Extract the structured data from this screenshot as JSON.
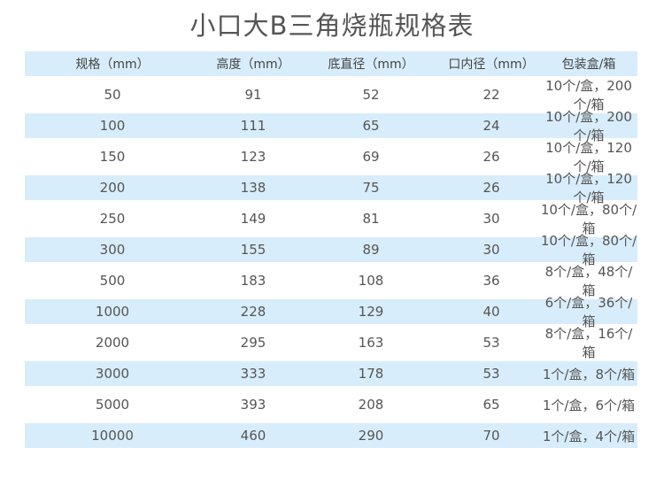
{
  "title": "小口大B三角烧瓶规格表",
  "headers": [
    "规格（mm）",
    "高度（mm）",
    "底直径（mm）",
    "口内径（mm）",
    "包装盒/箱"
  ],
  "rows": [
    [
      "50",
      "91",
      "52",
      "22",
      "10个/盒，200个/箱"
    ],
    [
      "100",
      "111",
      "65",
      "24",
      "10个/盒，200个/箱"
    ],
    [
      "150",
      "123",
      "69",
      "26",
      "10个/盒，120个/箱"
    ],
    [
      "200",
      "138",
      "75",
      "26",
      "10个/盒，120个/箱"
    ],
    [
      "250",
      "149",
      "81",
      "30",
      "10个/盒，80个/箱"
    ],
    [
      "300",
      "155",
      "89",
      "30",
      "10个/盒，80个/箱"
    ],
    [
      "500",
      "183",
      "108",
      "36",
      "8个/盒，48个/箱"
    ],
    [
      "1000",
      "228",
      "129",
      "40",
      "6个/盒，36个/箱"
    ],
    [
      "2000",
      "295",
      "163",
      "53",
      "8个/盒，16个/箱"
    ],
    [
      "3000",
      "333",
      "178",
      "53",
      "1个/盒，8个/箱"
    ],
    [
      "5000",
      "393",
      "208",
      "65",
      "1个/盒，6个/箱"
    ],
    [
      "10000",
      "460",
      "290",
      "70",
      "1个/盒，4个/箱"
    ]
  ],
  "colors": {
    "band": "#d8edfb",
    "text": "#555555"
  }
}
